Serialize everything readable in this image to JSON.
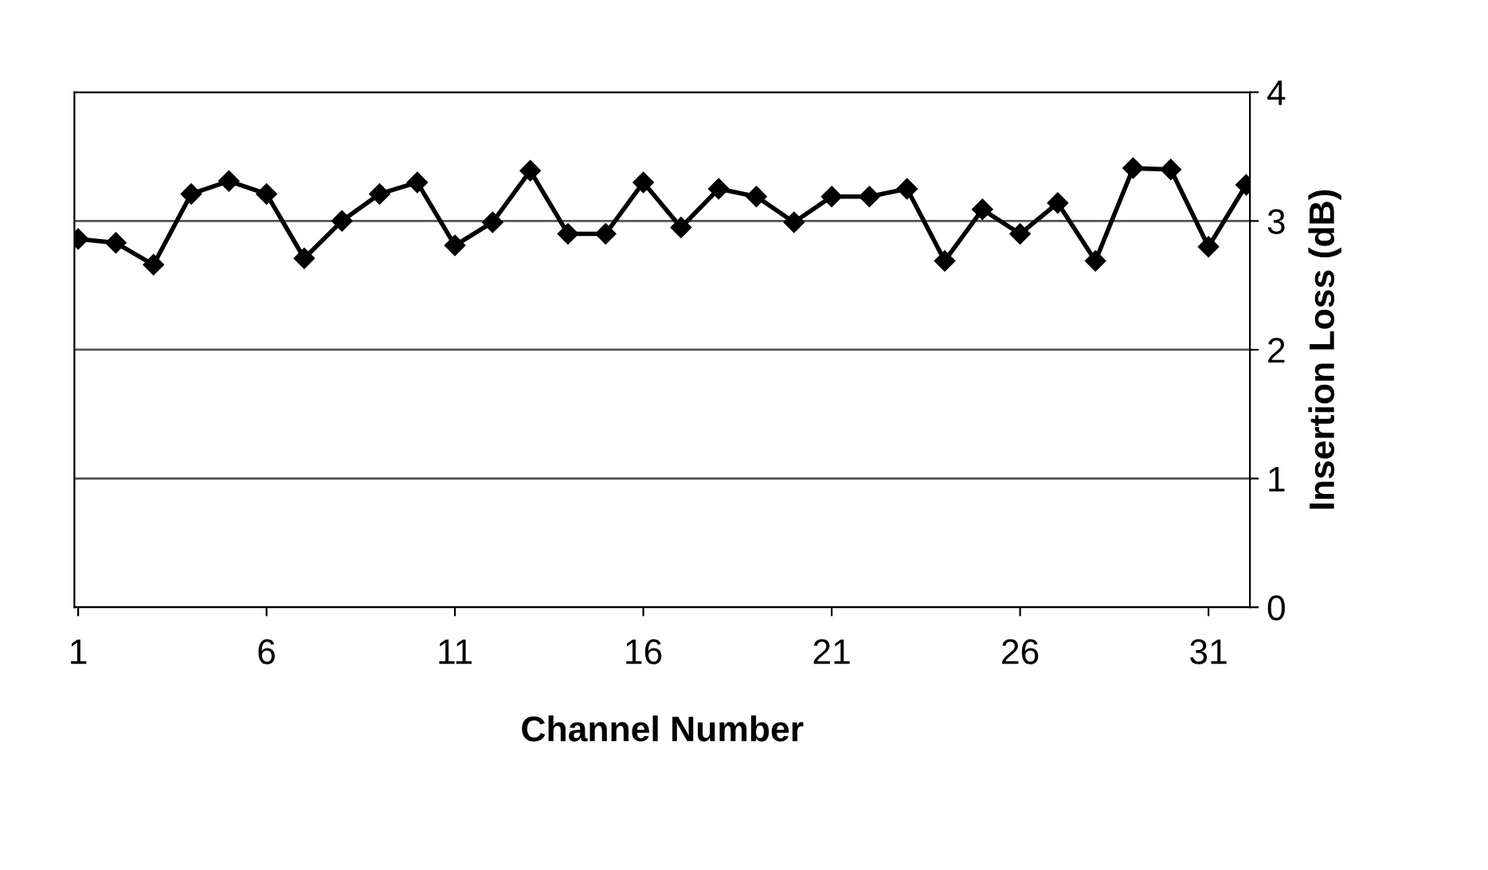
{
  "chart_data": {
    "type": "line",
    "xlabel": "Channel Number",
    "ylabel": "Insertion Loss (dB)",
    "x": [
      1,
      2,
      3,
      4,
      5,
      6,
      7,
      8,
      9,
      10,
      11,
      12,
      13,
      14,
      15,
      16,
      17,
      18,
      19,
      20,
      21,
      22,
      23,
      24,
      25,
      26,
      27,
      28,
      29,
      30,
      31,
      32
    ],
    "series": [
      {
        "color": "#000000",
        "values": [
          2.86,
          2.83,
          2.66,
          3.21,
          3.31,
          3.21,
          2.71,
          3.0,
          3.21,
          3.3,
          2.81,
          2.99,
          3.39,
          2.9,
          2.9,
          3.3,
          2.95,
          3.25,
          3.19,
          2.99,
          3.19,
          3.19,
          3.25,
          2.69,
          3.09,
          2.9,
          3.14,
          2.69,
          3.41,
          3.4,
          2.8,
          3.28
        ]
      }
    ],
    "xlim": [
      0.9,
      32.1
    ],
    "xticks": [
      1,
      6,
      11,
      16,
      21,
      26,
      31
    ],
    "ylim": [
      0,
      4
    ],
    "yticks": [
      0,
      1,
      2,
      3,
      4
    ],
    "grid": "y",
    "marker": "diamond",
    "line_style": "solid",
    "legend": false
  }
}
